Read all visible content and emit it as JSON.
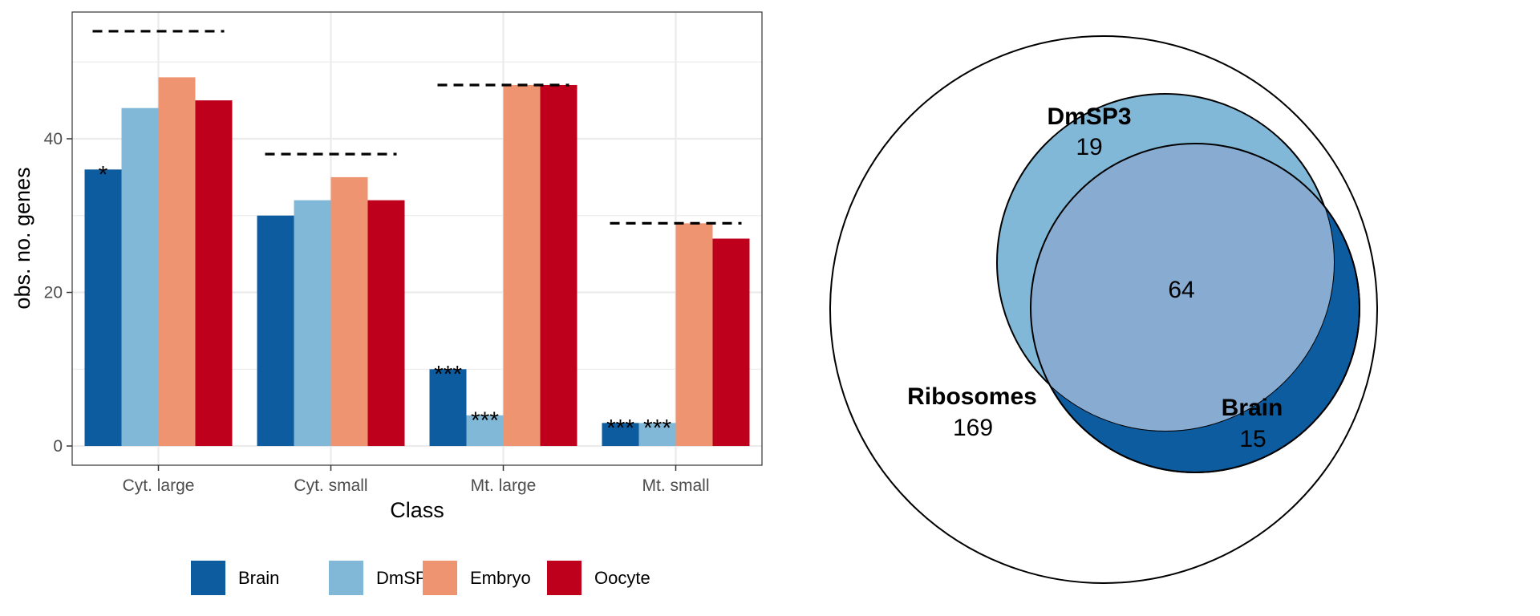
{
  "chart_data": [
    {
      "type": "bar",
      "xlabel": "Class",
      "ylabel": "obs. no. genes",
      "categories": [
        "Cyt. large",
        "Cyt. small",
        "Mt. large",
        "Mt. small"
      ],
      "series": [
        {
          "name": "Brain",
          "color": "#0e5ca0",
          "values": [
            36,
            30,
            10,
            3
          ]
        },
        {
          "name": "DmSP3",
          "color": "#82b8d7",
          "values": [
            44,
            32,
            4,
            3
          ]
        },
        {
          "name": "Embryo",
          "color": "#ef9470",
          "values": [
            48,
            35,
            47,
            29
          ]
        },
        {
          "name": "Oocyte",
          "color": "#be001d",
          "values": [
            45,
            32,
            47,
            27
          ]
        }
      ],
      "expected_lines": [
        54,
        38,
        47,
        29
      ],
      "significance": [
        {
          "category": "Cyt. large",
          "series": "Brain",
          "label": "*"
        },
        {
          "category": "Mt. large",
          "series": "Brain",
          "label": "***"
        },
        {
          "category": "Mt. large",
          "series": "DmSP3",
          "label": "***"
        },
        {
          "category": "Mt. small",
          "series": "Brain",
          "label": "***"
        },
        {
          "category": "Mt. small",
          "series": "DmSP3",
          "label": "***"
        }
      ],
      "yticks": [
        0,
        20,
        40
      ],
      "ylim": [
        -2.5,
        56.5
      ],
      "grid": true,
      "legend_position": "bottom"
    },
    {
      "type": "venn",
      "sets": [
        {
          "name": "Ribosomes",
          "only": 169,
          "color": "#ffffff"
        },
        {
          "name": "DmSP3",
          "only": 19,
          "color": "#82b8d7"
        },
        {
          "name": "Brain",
          "only": 15,
          "color": "#0e5ca0"
        }
      ],
      "intersection": {
        "label": "64",
        "color": "#87abd1"
      }
    }
  ]
}
